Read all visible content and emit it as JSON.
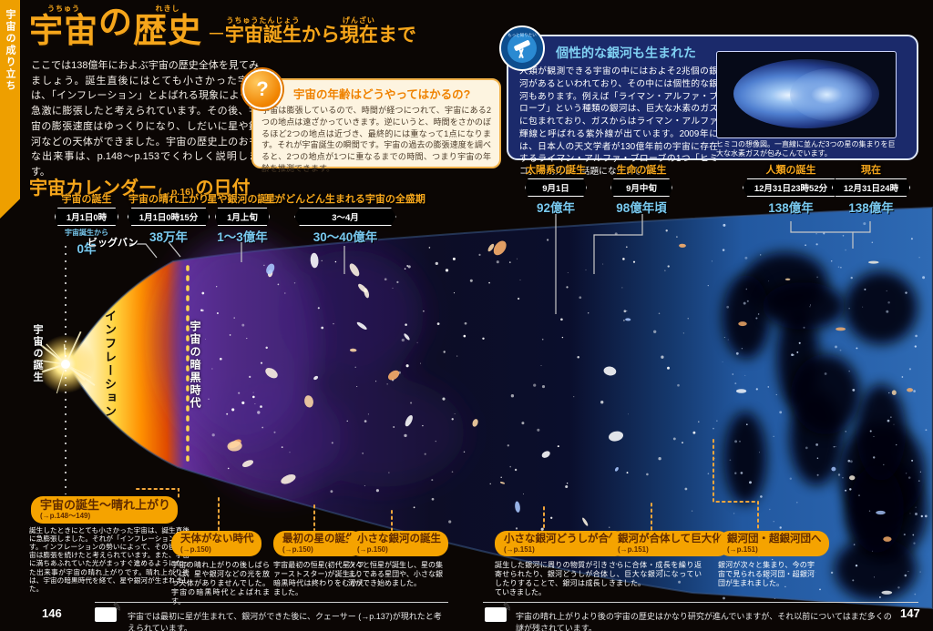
{
  "sidebar_tab": "宇宙の成り立ち",
  "header": {
    "title_base1": "宇宙",
    "title_ruby1": "うちゅう",
    "title_base2": "の",
    "title_ruby2": "",
    "title_base3": "歴史",
    "title_ruby3": "れきし",
    "subtitle_dash": "─",
    "sub_base1": "宇宙誕生",
    "sub_ruby1": "うちゅうたんじょう",
    "sub_base2": "から",
    "sub_ruby2": "",
    "sub_base3": "現在",
    "sub_ruby3": "げんざい",
    "sub_base4": "まで",
    "sub_ruby4": ""
  },
  "intro": "ここでは138億年におよぶ宇宙の歴史全体を見てみましょう。誕生直後にはとても小さかった宇宙は、「インフレーション」とよばれる現象によって急激に膨張したと考えられています。その後、宇宙の膨張速度はゆっくりになり、しだいに星や銀河などの天体ができました。宇宙の歴史上のおもな出来事は、p.148〜p.153でくわしく説明します。",
  "question_box": {
    "icon": "?",
    "title": "宇宙の年齢はどうやってはかるの?",
    "body": "宇宙は膨張しているので、時間が経つにつれて、宇宙にある2つの地点は遠ざかっていきます。逆にいうと、時間をさかのぼるほど2つの地点は近づき、最終的には重なって1点になります。それが宇宙誕生の瞬間です。宇宙の過去の膨張速度を調べると、2つの地点が1つに重なるまでの時間、つまり宇宙の年齢を推測できます。"
  },
  "side_box": {
    "icon_ring_text": "もっと知りたい",
    "title": "個性的な銀河も生まれた",
    "body": "人類が観測できる宇宙の中にはおよそ2兆個の銀河があるといわれており、その中には個性的な銀河もあります。例えば「ライマン・アルファ・ブローブ」という種類の銀河は、巨大な水素のガスに包まれており、ガスからはライマン・アルファ輝線と呼ばれる紫外線が出ています。2009年には、日本人の天文学者が130億年前の宇宙に存在するライマン・アルファ・ブローブの1つ「ヒミコ」を発見し、話題になりました。",
    "caption": "ヒミコの想像図。一直線に並んだ3つの星の集まりを巨大な水素ガスが包みこんでいます。"
  },
  "calendar": {
    "heading_main": "宇宙カレンダー",
    "heading_ref": "(→p.16)",
    "heading_tail": "の日付",
    "bigbang_label": "ビッグバン",
    "events": [
      {
        "title": "宇宙の誕生",
        "date": "1月1日0時",
        "prefix": "宇宙誕生から",
        "years": "0年"
      },
      {
        "title": "宇宙の晴れ上がり",
        "date": "1月1日0時15分",
        "years": "38万年"
      },
      {
        "title": "星や銀河の誕生",
        "date": "1月上旬",
        "years": "1〜3億年"
      },
      {
        "title": "星がどんどん生まれる宇宙の全盛期",
        "date": "3〜4月",
        "years": "30〜40億年"
      },
      {
        "title": "太陽系の誕生",
        "date": "9月1日",
        "years": "92億年"
      },
      {
        "title": "生命の誕生",
        "date": "9月中旬",
        "years": "98億年頃"
      },
      {
        "title": "人類の誕生",
        "date": "12月31日23時52分",
        "years": "138億年"
      },
      {
        "title": "現在",
        "date": "12月31日24時",
        "years": "138億年"
      }
    ]
  },
  "illustration": {
    "label_birth": "宇宙の誕生",
    "label_inflation": "インフレーション",
    "label_darkage": "宇宙の暗黒時代"
  },
  "callouts": [
    {
      "title": "宇宙の誕生〜晴れ上がり",
      "ref": "(→p.148〜149)",
      "body": "誕生したときにとても小さかった宇宙は、誕生直後に急膨張しました。それが「インフレーション」です。インフレーションの勢いによって、その後も宇宙は膨張を続けたと考えられています。また、宇宙に満ちあふれていた光がまっすぐ進めるようになった出来事が宇宙の晴れ上がりです。晴れ上がり後は、宇宙の暗黒時代を経て、星や銀河が生まれました。"
    },
    {
      "title": "天体がない時代",
      "ref": "(→p.150)",
      "body": "宇宙の晴れ上がりの後しばらくは、星や銀河などの光を放つ天体がありませんでした。宇宙の暗黒時代とよばれます。"
    },
    {
      "title": "最初の星の誕生",
      "ref": "(→p.150)",
      "body": "宇宙最初の恒星(初代星・ファーストスター)が誕生し、暗黒時代は終わりをむかえました。"
    },
    {
      "title": "小さな銀河の誕生",
      "ref": "(→p.150)",
      "body": "次々と恒星が誕生し、星の集まりである星団や、小さな銀河ができ始めました。"
    },
    {
      "title": "小さな銀河どうしが合体",
      "ref": "(→p.151)",
      "body": "誕生した銀河に周りの物質が引き寄せられたり、銀河どうしが合体したりすることで、銀河は成長していきました。"
    },
    {
      "title": "銀河が合体して巨大化",
      "ref": "(→p.151)",
      "body": "さらに合体・成長を繰り返し、巨大な銀河になっていきました。"
    },
    {
      "title": "銀河団・超銀河団へ",
      "ref": "(→p.151)",
      "body": "銀河が次々と集まり、今の宇宙で見られる銀河団・超銀河団が生まれました。"
    }
  ],
  "footer": {
    "left_page": "146",
    "left_note": "宇宙では最初に星が生まれて、銀河ができた後に、クェーサー (→p.137)が現れたと考えられています。",
    "right_page": "147",
    "right_note": "宇宙の晴れ上がりより後の宇宙の歴史はかなり研究が進んでいますが、それ以前についてはまだ多くの謎が残されています。"
  },
  "colors": {
    "accent_orange": "#f6a61b",
    "year_blue": "#79c9ef",
    "callout_bg": "#f5a300",
    "callout_title": "#5f2a00",
    "web_blue": "#2e6ab4",
    "info_box_navy": "#1b2a6b"
  }
}
